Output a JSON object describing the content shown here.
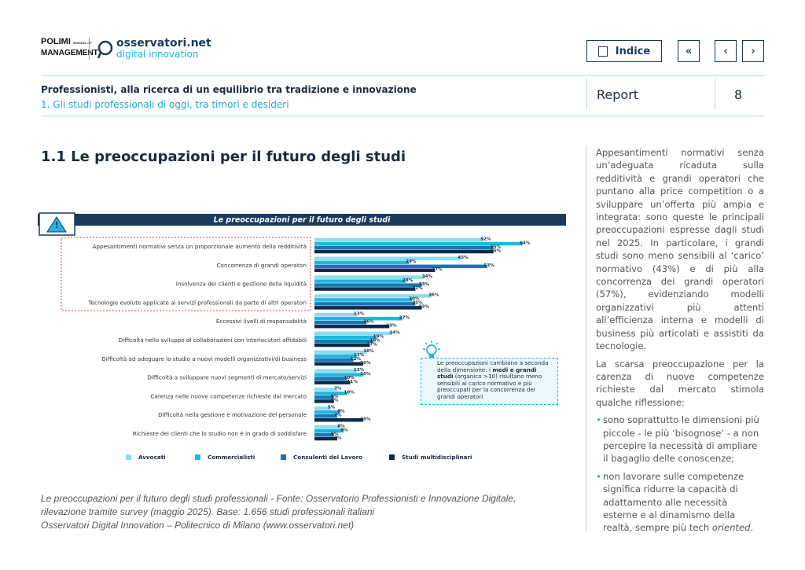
{
  "header": {
    "logo_polimi": "POLIMI",
    "logo_school": "SCHOOL OF",
    "logo_management": "MANAGEMENT",
    "logo_osservatori": "osservatori.net",
    "logo_digital": "digital innovation"
  },
  "nav": {
    "index": "Indice",
    "first": "«",
    "prev": "‹",
    "next": "›"
  },
  "title_bar": {
    "title": "Professionisti, alla ricerca di un equilibrio tra tradizione e innovazione",
    "subtitle": "1. Gli studi professionali di oggi, tra timori e desideri",
    "report": "Report",
    "page": "8"
  },
  "section_title": "1.1 Le preoccupazioni per il futuro degli studi",
  "chart_data": {
    "type": "bar",
    "orientation": "horizontal",
    "title": "Le preoccupazioni per il futuro degli studi",
    "categories": [
      "Appesantimenti normativi senza un proporzionale aumento della redditività",
      "Concorrenza di grandi operatori",
      "Insolvenza dei clienti e gestione della liquidità",
      "Tecnologie evolute applicate ai servizi professionali da parte di altri operatori",
      "Eccessivi livelli di responsabilità",
      "Difficoltà nello sviluppo di collaborazioni con interlocutori affidabili",
      "Difficoltà ad adeguare lo studio a nuovi modelli organizzativi/di business",
      "Difficoltà a sviluppare nuovi segmenti di mercato/servizi",
      "Carenza nelle nuove competenze richieste dal mercato",
      "Difficoltà nella gestione e motivazione del personale",
      "Richieste dei clienti che lo studio non è in grado di soddisfare"
    ],
    "series": [
      {
        "name": "Avvocati",
        "color": "#8fdcef",
        "values": [
          52,
          45,
          34,
          36,
          13,
          24,
          16,
          13,
          7,
          5,
          8
        ],
        "value_labels": [
          "52%",
          "45%",
          "34%",
          "36%",
          "13%",
          "24%",
          "16%",
          "13%",
          "7%",
          "5%",
          "8%"
        ]
      },
      {
        "name": "Commercialisti",
        "color": "#1fb6e0",
        "values": [
          64,
          29,
          28,
          30,
          27,
          19,
          13,
          15,
          10,
          8,
          9
        ],
        "value_labels": [
          "64%",
          "29%",
          "28%",
          "30%",
          "27%",
          "19%",
          "13%",
          "15%",
          "10%",
          "8%",
          "9%"
        ]
      },
      {
        "name": "Consulenti del Lavoro",
        "color": "#1577b8",
        "values": [
          55,
          53,
          33,
          31,
          16,
          18,
          12,
          10,
          6,
          7,
          6
        ],
        "value_labels": [
          "55%",
          "53%",
          "33%",
          "31%",
          "16%",
          "18%",
          "12%",
          "10%",
          "6%",
          "7%",
          "6%"
        ]
      },
      {
        "name": "Studi multidisciplinari",
        "color": "#0d2a4a",
        "values": [
          55,
          37,
          31,
          33,
          23,
          17,
          15,
          11,
          6,
          15,
          7
        ],
        "value_labels": [
          "55%",
          "37%",
          "31%",
          "33%",
          "23%",
          "17%",
          "15%",
          "11%",
          "6%",
          "15%",
          "7%"
        ]
      }
    ],
    "annotation": [
      {
        "text": "Le preoccupazioni cambiano a seconda della dimensione: i ",
        "bold": false
      },
      {
        "text": "medi e grandi studi",
        "bold": true
      },
      {
        "text": " (organico >10) risultano meno sensibili al carico normativo e più preoccupati per la concorrenza dei grandi operatori",
        "bold": false
      }
    ]
  },
  "sidebar": {
    "paragraphs": [
      "Appesantimenti normativi senza un’adeguata ricaduta sulla redditività e grandi operatori che puntano alla price competition o a sviluppare un’offerta più ampia e integrata: sono queste le principali preoccupazioni espresse dagli studi nel 2025. In particolare, i grandi studi sono meno sensibili al ‘carico’ normativo (43%) e di più alla concorrenza dei grandi operatori (57%), evidenziando modelli organizzativi più attenti all’efficienza interna e modelli di business più articolati e assistiti da tecnologie.",
      "La scarsa preoccupazione per la carenza di nuove competenze richieste dal mercato stimola qualche riflessione:"
    ],
    "bullets": [
      [
        "sono soprattutto le dimensioni più piccole - le più ‘bisognose’ - a non percepire la necessità di ampliare il bagaglio delle conoscenze;"
      ],
      [
        "non lavorare sulle competenze significa ridurre la capacità di adattamento alle necessità esterne e al dinamismo della realtà, sempre più tech ",
        "oriented",
        "."
      ]
    ]
  },
  "caption": {
    "lines": [
      "Le preoccupazioni per il futuro degli studi professionali - Fonte: Osservatorio Professionisti e Innovazione Digitale,",
      "rilevazione tramite survey (maggio 2025). Base: 1.656 studi professionali italiani",
      "Osservatori Digital Innovation – Politecnico di Milano (www.osservatori.net)"
    ]
  }
}
